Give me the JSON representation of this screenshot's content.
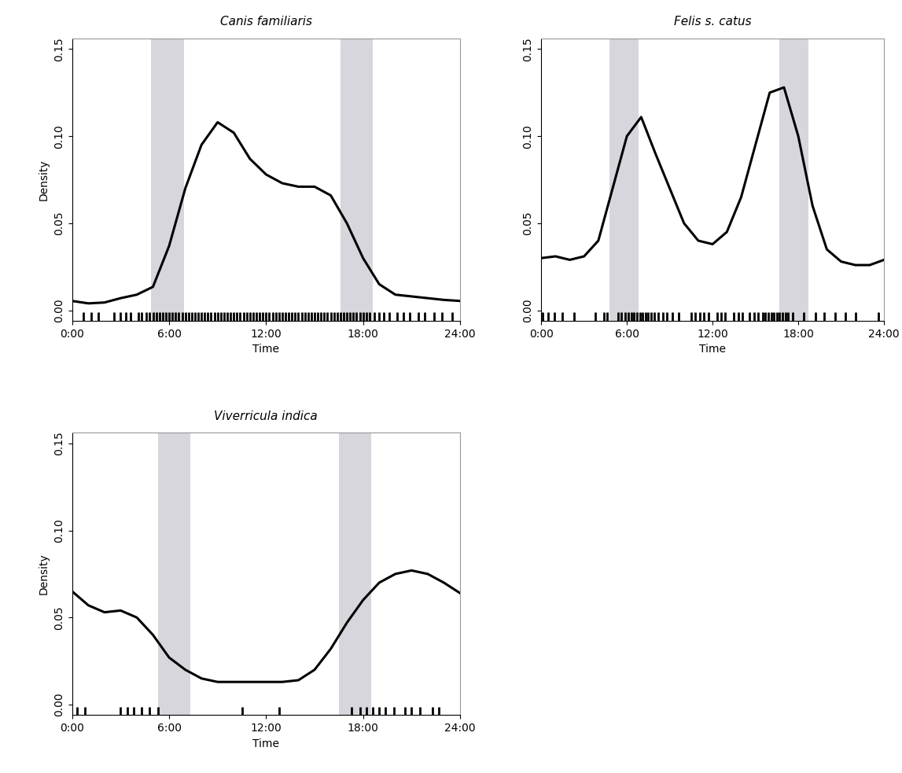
{
  "chart_data": [
    {
      "type": "line",
      "title": "Canis familiaris",
      "xlabel": "Time",
      "ylabel": "Density",
      "color": "#000000",
      "x": [
        0,
        1,
        2,
        3,
        4,
        5,
        6,
        7,
        8,
        9,
        10,
        11,
        12,
        13,
        14,
        15,
        16,
        17,
        18,
        19,
        20,
        21,
        22,
        23,
        24
      ],
      "values": [
        0.0054,
        0.004,
        0.0045,
        0.007,
        0.009,
        0.0135,
        0.037,
        0.07,
        0.095,
        0.108,
        0.102,
        0.087,
        0.078,
        0.073,
        0.071,
        0.071,
        0.066,
        0.05,
        0.03,
        0.015,
        0.009,
        0.008,
        0.007,
        0.006,
        0.0054
      ],
      "xlim": [
        0,
        24
      ],
      "ylim": [
        -0.006,
        0.156
      ],
      "xticks": [
        {
          "value": 0,
          "label": "0:00"
        },
        {
          "value": 6,
          "label": "6:00"
        },
        {
          "value": 12,
          "label": "12:00"
        },
        {
          "value": 18,
          "label": "18:00"
        },
        {
          "value": 24,
          "label": "24:00"
        }
      ],
      "yticks": [
        {
          "value": 0,
          "label": "0.00"
        },
        {
          "value": 0.05,
          "label": "0.05"
        },
        {
          "value": 0.1,
          "label": "0.10"
        },
        {
          "value": 0.15,
          "label": "0.15"
        }
      ],
      "bands": [
        [
          4.9,
          6.9
        ],
        [
          16.6,
          18.6
        ]
      ],
      "rug": [
        0.7,
        1.2,
        1.6,
        2.6,
        3.0,
        3.3,
        3.6,
        4.1,
        4.3,
        4.6,
        4.8,
        5.0,
        5.2,
        5.4,
        5.6,
        5.8,
        6.0,
        6.2,
        6.4,
        6.6,
        6.8,
        7.0,
        7.2,
        7.4,
        7.6,
        7.8,
        8.0,
        8.2,
        8.4,
        8.6,
        8.8,
        9.0,
        9.2,
        9.4,
        9.6,
        9.8,
        10.0,
        10.2,
        10.4,
        10.6,
        10.8,
        11.0,
        11.2,
        11.4,
        11.6,
        11.8,
        12.0,
        12.2,
        12.4,
        12.6,
        12.8,
        13.0,
        13.2,
        13.4,
        13.6,
        13.8,
        14.0,
        14.2,
        14.4,
        14.6,
        14.8,
        15.0,
        15.2,
        15.4,
        15.6,
        15.8,
        16.0,
        16.2,
        16.4,
        16.6,
        16.8,
        17.0,
        17.2,
        17.4,
        17.6,
        17.8,
        18.0,
        18.2,
        18.4,
        18.7,
        19.0,
        19.3,
        19.6,
        20.1,
        20.5,
        20.9,
        21.4,
        21.8,
        22.4,
        22.9,
        23.5
      ]
    },
    {
      "type": "line",
      "title": "Felis s. catus",
      "xlabel": "Time",
      "color": "#000000",
      "x": [
        0,
        1,
        2,
        3,
        4,
        5,
        6,
        7,
        8,
        9,
        10,
        11,
        12,
        13,
        14,
        15,
        16,
        17,
        18,
        19,
        20,
        21,
        22,
        23,
        24
      ],
      "values": [
        0.03,
        0.031,
        0.029,
        0.031,
        0.04,
        0.07,
        0.1,
        0.111,
        0.09,
        0.07,
        0.05,
        0.04,
        0.038,
        0.045,
        0.065,
        0.095,
        0.125,
        0.128,
        0.1,
        0.06,
        0.035,
        0.028,
        0.026,
        0.026,
        0.029
      ],
      "xlim": [
        0,
        24
      ],
      "ylim": [
        -0.006,
        0.156
      ],
      "xticks": [
        {
          "value": 0,
          "label": "0:00"
        },
        {
          "value": 6,
          "label": "6:00"
        },
        {
          "value": 12,
          "label": "12:00"
        },
        {
          "value": 18,
          "label": "18:00"
        },
        {
          "value": 24,
          "label": "24:00"
        }
      ],
      "yticks": [
        {
          "value": 0,
          "label": "0.00"
        },
        {
          "value": 0.05,
          "label": "0.05"
        },
        {
          "value": 0.1,
          "label": "0.10"
        },
        {
          "value": 0.15,
          "label": "0.15"
        }
      ],
      "bands": [
        [
          4.8,
          6.8
        ],
        [
          16.7,
          18.7
        ]
      ],
      "rug": [
        0.1,
        0.5,
        0.9,
        1.5,
        2.3,
        3.8,
        4.4,
        4.6,
        5.4,
        5.6,
        5.9,
        6.1,
        6.3,
        6.5,
        6.7,
        6.9,
        7.1,
        7.3,
        7.5,
        7.7,
        7.9,
        8.2,
        8.5,
        8.8,
        9.2,
        9.6,
        10.5,
        10.8,
        11.1,
        11.4,
        11.7,
        12.3,
        12.6,
        12.9,
        13.5,
        13.8,
        14.1,
        14.6,
        14.9,
        15.2,
        15.5,
        15.7,
        15.9,
        16.1,
        16.3,
        16.5,
        16.7,
        16.9,
        17.1,
        17.3,
        17.6,
        18.4,
        19.2,
        19.8,
        20.6,
        21.3,
        22.0,
        23.6
      ]
    },
    {
      "type": "line",
      "title": "Viverricula indica",
      "xlabel": "Time",
      "ylabel": "Density",
      "color": "#000000",
      "x": [
        0,
        1,
        2,
        3,
        4,
        5,
        6,
        7,
        8,
        9,
        10,
        11,
        12,
        13,
        14,
        15,
        16,
        17,
        18,
        19,
        20,
        21,
        22,
        23,
        24
      ],
      "values": [
        0.065,
        0.057,
        0.053,
        0.054,
        0.05,
        0.04,
        0.027,
        0.02,
        0.015,
        0.013,
        0.013,
        0.013,
        0.013,
        0.013,
        0.014,
        0.02,
        0.032,
        0.047,
        0.06,
        0.07,
        0.075,
        0.077,
        0.075,
        0.07,
        0.064
      ],
      "xlim": [
        0,
        24
      ],
      "ylim": [
        -0.006,
        0.156
      ],
      "xticks": [
        {
          "value": 0,
          "label": "0:00"
        },
        {
          "value": 6,
          "label": "6:00"
        },
        {
          "value": 12,
          "label": "12:00"
        },
        {
          "value": 18,
          "label": "18:00"
        },
        {
          "value": 24,
          "label": "24:00"
        }
      ],
      "yticks": [
        {
          "value": 0,
          "label": "0.00"
        },
        {
          "value": 0.05,
          "label": "0.05"
        },
        {
          "value": 0.1,
          "label": "0.10"
        },
        {
          "value": 0.15,
          "label": "0.15"
        }
      ],
      "bands": [
        [
          5.3,
          7.3
        ],
        [
          16.5,
          18.5
        ]
      ],
      "rug": [
        0.3,
        0.8,
        3.0,
        3.4,
        3.8,
        4.3,
        4.8,
        5.3,
        10.5,
        12.8,
        17.3,
        17.8,
        18.2,
        18.6,
        19.0,
        19.4,
        19.9,
        20.6,
        21.0,
        21.5,
        22.3,
        22.7
      ]
    }
  ]
}
